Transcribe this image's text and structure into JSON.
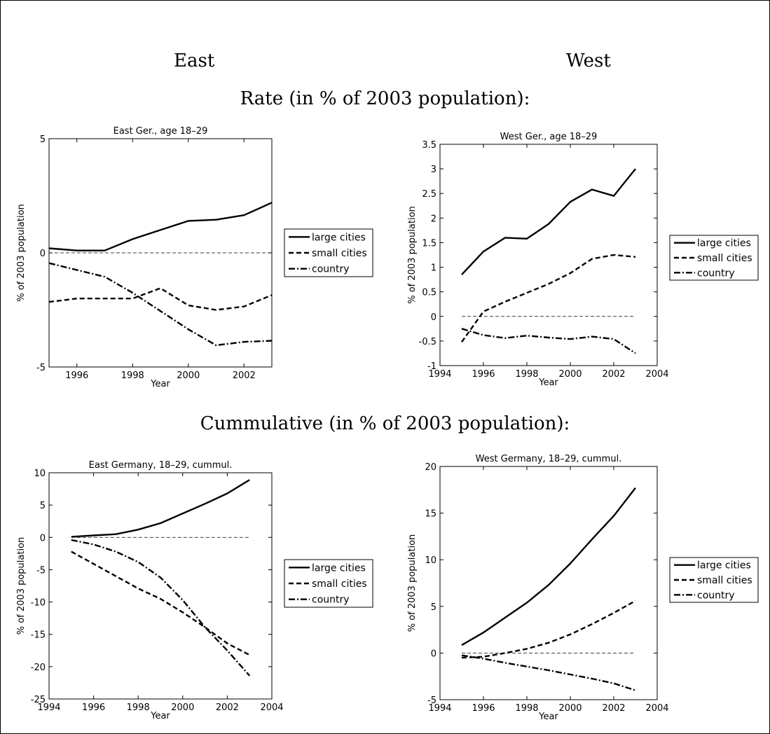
{
  "headings": {
    "east": "East",
    "west": "West",
    "rate": "Rate (in % of 2003 population):",
    "cumulative": "Cummulative (in % of 2003 population):"
  },
  "legend_labels": [
    "large cities",
    "small cities",
    "country"
  ],
  "chart_data": [
    {
      "type": "line",
      "title": "East Ger., age 18–29",
      "xlabel": "Year",
      "ylabel": "% of 2003 population",
      "xlim": [
        1995,
        2003
      ],
      "ylim": [
        -5,
        5
      ],
      "xticks": [
        1996,
        1998,
        2000,
        2002
      ],
      "yticks": [
        -5,
        0,
        5
      ],
      "x": [
        1995,
        1996,
        1997,
        1998,
        1999,
        2000,
        2001,
        2002,
        2003
      ],
      "series": [
        {
          "name": "large cities",
          "style": "solid",
          "values": [
            0.2,
            0.1,
            0.1,
            0.6,
            1.0,
            1.4,
            1.45,
            1.65,
            2.2
          ]
        },
        {
          "name": "small cities",
          "style": "dashed",
          "values": [
            -2.15,
            -2.0,
            -2.0,
            -2.0,
            -1.55,
            -2.3,
            -2.5,
            -2.35,
            -1.85
          ]
        },
        {
          "name": "country",
          "style": "dashdot",
          "values": [
            -0.45,
            -0.75,
            -1.05,
            -1.75,
            -2.55,
            -3.35,
            -4.05,
            -3.9,
            -3.85
          ]
        }
      ],
      "zero_line": true
    },
    {
      "type": "line",
      "title": "West Ger., age 18–29",
      "xlabel": "Year",
      "ylabel": "% of 2003 population",
      "xlim": [
        1994,
        2004
      ],
      "ylim": [
        -1,
        3.5
      ],
      "xticks": [
        1994,
        1996,
        1998,
        2000,
        2002,
        2004
      ],
      "yticks": [
        -1,
        -0.5,
        0,
        0.5,
        1,
        1.5,
        2,
        2.5,
        3,
        3.5
      ],
      "x": [
        1995,
        1996,
        1997,
        1998,
        1999,
        2000,
        2001,
        2002,
        2003
      ],
      "series": [
        {
          "name": "large cities",
          "style": "solid",
          "values": [
            0.85,
            1.32,
            1.6,
            1.58,
            1.88,
            2.33,
            2.58,
            2.45,
            3.0
          ]
        },
        {
          "name": "small cities",
          "style": "dashed",
          "values": [
            -0.52,
            0.1,
            0.3,
            0.48,
            0.66,
            0.88,
            1.17,
            1.25,
            1.21
          ]
        },
        {
          "name": "country",
          "style": "dashdot",
          "values": [
            -0.25,
            -0.38,
            -0.44,
            -0.39,
            -0.43,
            -0.46,
            -0.41,
            -0.46,
            -0.75
          ]
        }
      ],
      "zero_line": true
    },
    {
      "type": "line",
      "title": "East Germany, 18–29, cummul.",
      "xlabel": "Year",
      "ylabel": "% of 2003 population",
      "xlim": [
        1994,
        2004
      ],
      "ylim": [
        -25,
        10
      ],
      "xticks": [
        1994,
        1996,
        1998,
        2000,
        2002,
        2004
      ],
      "yticks": [
        -25,
        -20,
        -15,
        -10,
        -5,
        0,
        5,
        10
      ],
      "x": [
        1995,
        1996,
        1997,
        1998,
        1999,
        2000,
        2001,
        2002,
        2003
      ],
      "series": [
        {
          "name": "large cities",
          "style": "solid",
          "values": [
            0.1,
            0.3,
            0.5,
            1.2,
            2.2,
            3.7,
            5.2,
            6.8,
            8.9
          ]
        },
        {
          "name": "small cities",
          "style": "dashed",
          "values": [
            -2.2,
            -4.1,
            -6.0,
            -7.9,
            -9.5,
            -11.6,
            -13.9,
            -16.4,
            -18.2
          ]
        },
        {
          "name": "country",
          "style": "dashdot",
          "values": [
            -0.4,
            -1.1,
            -2.2,
            -3.8,
            -6.2,
            -9.7,
            -13.9,
            -17.5,
            -21.4
          ]
        }
      ],
      "zero_line": true
    },
    {
      "type": "line",
      "title": "West Germany, 18–29, cummul.",
      "xlabel": "Year",
      "ylabel": "% of 2003 population",
      "xlim": [
        1994,
        2004
      ],
      "ylim": [
        -5,
        20
      ],
      "xticks": [
        1994,
        1996,
        1998,
        2000,
        2002,
        2004
      ],
      "yticks": [
        -5,
        0,
        5,
        10,
        15,
        20
      ],
      "x": [
        1995,
        1996,
        1997,
        1998,
        1999,
        2000,
        2001,
        2002,
        2003
      ],
      "series": [
        {
          "name": "large cities",
          "style": "solid",
          "values": [
            0.85,
            2.2,
            3.8,
            5.4,
            7.3,
            9.6,
            12.2,
            14.7,
            17.7
          ]
        },
        {
          "name": "small cities",
          "style": "dashed",
          "values": [
            -0.5,
            -0.4,
            0.0,
            0.45,
            1.1,
            2.0,
            3.1,
            4.3,
            5.6
          ]
        },
        {
          "name": "country",
          "style": "dashdot",
          "values": [
            -0.25,
            -0.6,
            -1.05,
            -1.45,
            -1.85,
            -2.3,
            -2.75,
            -3.25,
            -4.0
          ]
        }
      ],
      "zero_line": true
    }
  ]
}
